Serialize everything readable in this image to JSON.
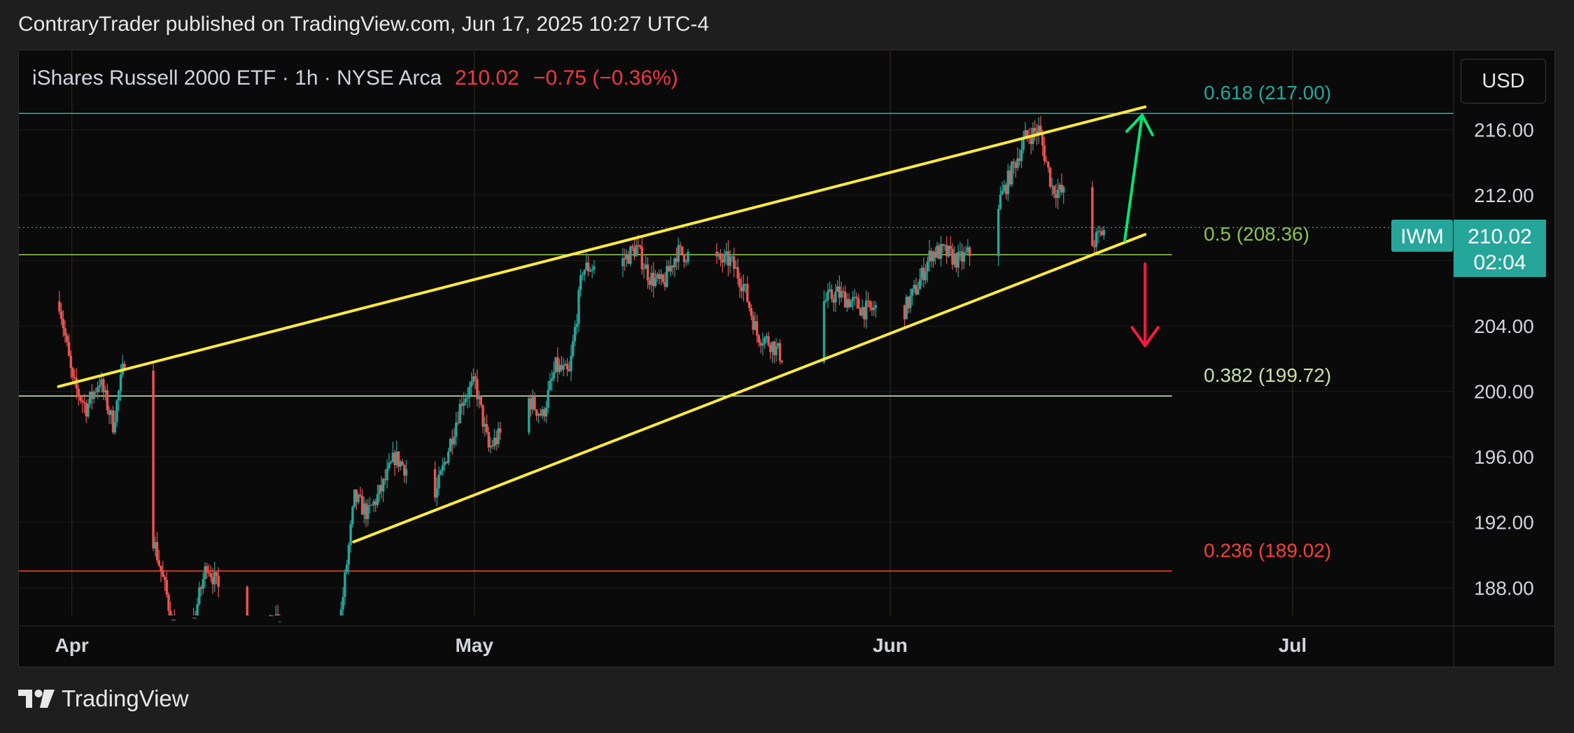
{
  "header": {
    "publisher_line": "ContraryTrader published on TradingView.com, Jun 17, 2025 10:27 UTC-4"
  },
  "footer": {
    "brand": "TradingView"
  },
  "toolbar": {
    "currency_label": "USD"
  },
  "symbol_bar": {
    "name": "iShares Russell 2000 ETF · 1h · NYSE Arca",
    "price": "210.02",
    "change": "−0.75 (−0.36%)"
  },
  "price_tag": {
    "ticker": "IWM",
    "price": "210.02",
    "countdown": "02:04"
  },
  "colors": {
    "background": "#0a0a0a",
    "up": "#26a69a",
    "down": "#ef5350",
    "channel": "#ffeb3b",
    "fib_618": "#26a69a",
    "fib_5": "#8bc34a",
    "fib_382": "#c5e1a5",
    "fib_236": "#f44336",
    "arrow_up": "#00e676",
    "arrow_down": "#ff1744",
    "tag": "#26a69a"
  },
  "chart_data": {
    "type": "candlestick",
    "title": "iShares Russell 2000 ETF · 1h · NYSE Arca",
    "x_ticks": [
      "Apr",
      "May",
      "Jun",
      "Jul"
    ],
    "y_ticks": [
      "188.00",
      "192.00",
      "196.00",
      "200.00",
      "204.00",
      "208.00",
      "212.00",
      "216.00"
    ],
    "ylim": [
      186.3,
      220.9
    ],
    "grid": true,
    "fib_levels": [
      {
        "label": "0.618 (217.00)",
        "value": 217.0
      },
      {
        "label": "0.5 (208.36)",
        "value": 208.36
      },
      {
        "label": "0.382 (199.72)",
        "value": 199.72
      },
      {
        "label": "0.236 (189.02)",
        "value": 189.02
      }
    ],
    "channel_upper": [
      [
        "Mar 31",
        200.3
      ],
      [
        "Jun 20",
        217.4
      ]
    ],
    "channel_lower": [
      [
        "Apr 22",
        190.8
      ],
      [
        "Jun 20",
        209.6
      ]
    ],
    "annotations": [
      {
        "type": "arrow-up",
        "from": [
          "Jun 19",
          209.2
        ],
        "to": [
          "Jun 19",
          216.9
        ]
      },
      {
        "type": "arrow-down",
        "from": [
          "Jun 20",
          207.8
        ],
        "to": [
          "Jun 20",
          202.8
        ]
      }
    ],
    "last_price": 210.02,
    "path_points": [
      [
        "Mar 31",
        205.5
      ],
      [
        "Apr 1",
        200.5
      ],
      [
        "Apr 2",
        199.0
      ],
      [
        "Apr 3",
        200.7
      ],
      [
        "Apr 4",
        198.0
      ],
      [
        "Apr 5",
        202.5
      ],
      [
        "Apr 7",
        191.0
      ],
      [
        "Apr 8",
        187.5
      ],
      [
        "Apr 9",
        183.5
      ],
      [
        "Apr 10",
        186.0
      ],
      [
        "Apr 11",
        189.5
      ],
      [
        "Apr 14",
        184.0
      ],
      [
        "Apr 16",
        186.0
      ],
      [
        "Apr 17",
        185.0
      ],
      [
        "Apr 18",
        184.5
      ],
      [
        "Apr 21",
        186.5
      ],
      [
        "Apr 22",
        193.5
      ],
      [
        "Apr 23",
        192.5
      ],
      [
        "Apr 24",
        194.0
      ],
      [
        "Apr 25",
        196.0
      ],
      [
        "Apr 28",
        193.5
      ],
      [
        "Apr 29",
        196.5
      ],
      [
        "Apr 30",
        199.5
      ],
      [
        "May 1",
        200.5
      ],
      [
        "May 2",
        196.5
      ],
      [
        "May 5",
        199.5
      ],
      [
        "May 6",
        198.5
      ],
      [
        "May 7",
        201.5
      ],
      [
        "May 8",
        201.0
      ],
      [
        "May 9",
        207.5
      ],
      [
        "May 12",
        208.0
      ],
      [
        "May 13",
        208.8
      ],
      [
        "May 14",
        207.0
      ],
      [
        "May 15",
        206.5
      ],
      [
        "May 16",
        208.5
      ],
      [
        "May 19",
        208.0
      ],
      [
        "May 20",
        208.0
      ],
      [
        "May 21",
        206.5
      ],
      [
        "May 22",
        203.5
      ],
      [
        "May 23",
        203.0
      ],
      [
        "May 24",
        202.0
      ],
      [
        "May 26",
        202.5
      ],
      [
        "May 27",
        205.5
      ],
      [
        "May 28",
        206.0
      ],
      [
        "May 29",
        205.5
      ],
      [
        "May 30",
        205.0
      ],
      [
        "Jun 2",
        205.0
      ],
      [
        "Jun 3",
        206.5
      ],
      [
        "Jun 4",
        208.5
      ],
      [
        "Jun 5",
        208.5
      ],
      [
        "Jun 6",
        208.0
      ],
      [
        "Jun 7",
        208.5
      ],
      [
        "Jun 9",
        211.5
      ],
      [
        "Jun 10",
        213.5
      ],
      [
        "Jun 11",
        215.5
      ],
      [
        "Jun 12",
        216.0
      ],
      [
        "Jun 13",
        212.5
      ],
      [
        "Jun 14",
        212.0
      ],
      [
        "Jun 15",
        210.0
      ],
      [
        "Jun 16",
        209.0
      ],
      [
        "Jun 17",
        210.02
      ]
    ]
  }
}
